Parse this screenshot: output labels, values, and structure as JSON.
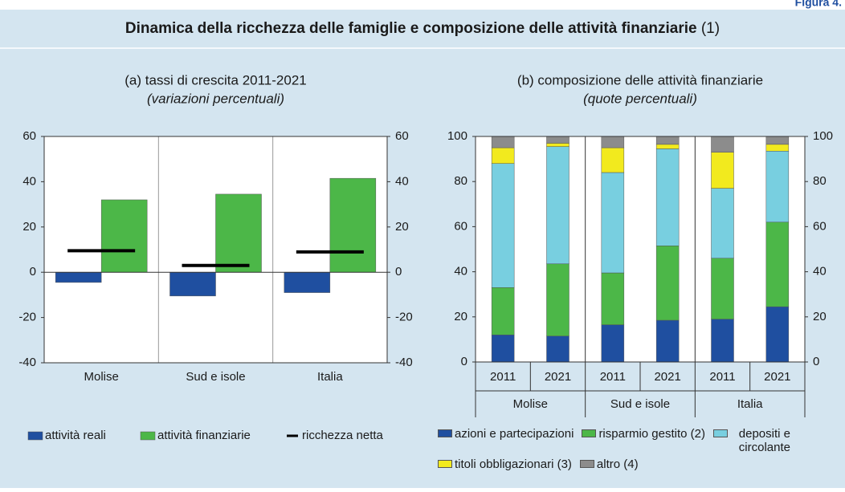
{
  "figure_label": "Figura 4.",
  "title": "Dinamica della ricchezza delle famiglie e composizione delle attività finanziarie",
  "title_note": "(1)",
  "chart_data": [
    {
      "type": "bar",
      "title": "(a) tassi di crescita 2011-2021",
      "subtitle": "(variazioni percentuali)",
      "categories": [
        "Molise",
        "Sud e isole",
        "Italia"
      ],
      "series": [
        {
          "name": "attività reali",
          "color": "#1f4fa0",
          "values": [
            -4.5,
            -10.5,
            -9
          ]
        },
        {
          "name": "attività finanziarie",
          "color": "#4cb748",
          "values": [
            32,
            34.5,
            41.5
          ]
        },
        {
          "name": "ricchezza netta",
          "color": "#000000",
          "style": "marker",
          "values": [
            9.5,
            3,
            9
          ]
        }
      ],
      "ylim": [
        -40,
        60
      ],
      "yticks": [
        -40,
        -20,
        0,
        20,
        40,
        60
      ],
      "y2lim": [
        -40,
        60
      ],
      "y2ticks": [
        -40,
        -20,
        0,
        20,
        40,
        60
      ]
    },
    {
      "type": "stacked_bar",
      "title": "(b) composizione delle attività finanziarie",
      "subtitle": "(quote percentuali)",
      "categories": [
        "2011",
        "2021",
        "2011",
        "2021",
        "2011",
        "2021"
      ],
      "groups": [
        "Molise",
        "Sud e isole",
        "Italia"
      ],
      "series": [
        {
          "name": "azioni e partecipazioni",
          "color": "#1f4fa0",
          "values": [
            12,
            11.5,
            16.5,
            18.5,
            19,
            24.5
          ]
        },
        {
          "name": "risparmio gestito (2)",
          "color": "#4cb748",
          "values": [
            21,
            32,
            23,
            33,
            27,
            37.5
          ]
        },
        {
          "name": "depositi e circolante",
          "color": "#78cfe0",
          "values": [
            55,
            52,
            44.5,
            43,
            31,
            31.5
          ]
        },
        {
          "name": "titoli obbligazionari (3)",
          "color": "#f2ea1e",
          "values": [
            7,
            1.5,
            11,
            2,
            16,
            3
          ]
        },
        {
          "name": "altro (4)",
          "color": "#8c8c8c",
          "values": [
            5,
            3,
            5,
            3.5,
            7,
            3.5
          ]
        }
      ],
      "ylim": [
        0,
        100
      ],
      "yticks": [
        0,
        20,
        40,
        60,
        80,
        100
      ],
      "y2lim": [
        0,
        100
      ],
      "y2ticks": [
        0,
        20,
        40,
        60,
        80,
        100
      ]
    }
  ]
}
